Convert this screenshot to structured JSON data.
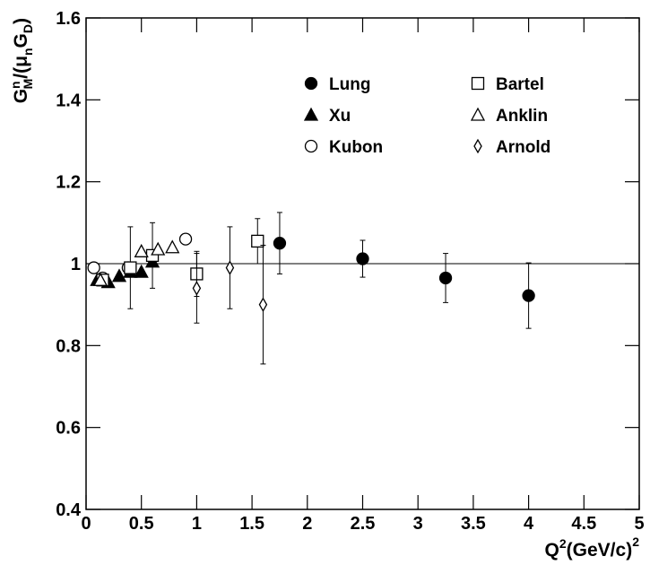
{
  "chart_data": {
    "type": "scatter",
    "ylabel_parts": [
      "G",
      "n",
      "M",
      "/(",
      "μ",
      "n",
      "G",
      "D",
      ")"
    ],
    "xlabel_parts": [
      "Q",
      "2",
      "(GeV/c)",
      "2"
    ],
    "xlim": [
      0,
      5
    ],
    "ylim": [
      0.4,
      1.6
    ],
    "xticks": [
      0,
      0.5,
      1,
      1.5,
      2,
      2.5,
      3,
      3.5,
      4,
      4.5,
      5
    ],
    "yticks": [
      0.4,
      0.6,
      0.8,
      1,
      1.2,
      1.4,
      1.6
    ],
    "reference_line": 1,
    "series": [
      {
        "name": "Lung",
        "marker": "circle-filled",
        "color": "#000000",
        "x": [
          1.75,
          2.5,
          3.25,
          4.0
        ],
        "values": [
          1.05,
          1.012,
          0.965,
          0.922
        ],
        "errors": [
          0.075,
          0.045,
          0.06,
          0.08
        ]
      },
      {
        "name": "Xu",
        "marker": "triangle-filled",
        "color": "#000000",
        "x": [
          0.1,
          0.2,
          0.3,
          0.4,
          0.5,
          0.6
        ],
        "values": [
          0.96,
          0.955,
          0.97,
          0.98,
          0.98,
          1.005
        ]
      },
      {
        "name": "Kubon",
        "marker": "circle-open",
        "color": "#000000",
        "x": [
          0.07,
          0.15,
          0.38,
          0.9
        ],
        "values": [
          0.99,
          0.965,
          0.99,
          1.06
        ]
      },
      {
        "name": "Bartel",
        "marker": "square-open",
        "color": "#000000",
        "x": [
          0.15,
          0.4,
          0.6,
          1.0,
          1.55
        ],
        "values": [
          0.96,
          0.99,
          1.02,
          0.975,
          1.055
        ],
        "errors": [
          0.01,
          0.1,
          0.08,
          0.055,
          0.055
        ]
      },
      {
        "name": "Anklin",
        "marker": "triangle-open",
        "color": "#000000",
        "x": [
          0.13,
          0.5,
          0.65,
          0.78
        ],
        "values": [
          0.96,
          1.03,
          1.035,
          1.04
        ]
      },
      {
        "name": "Arnold",
        "marker": "diamond-open",
        "color": "#000000",
        "x": [
          1.0,
          1.3,
          1.6
        ],
        "values": [
          0.94,
          0.99,
          0.9
        ],
        "errors": [
          0.085,
          0.1,
          0.145
        ]
      }
    ]
  }
}
